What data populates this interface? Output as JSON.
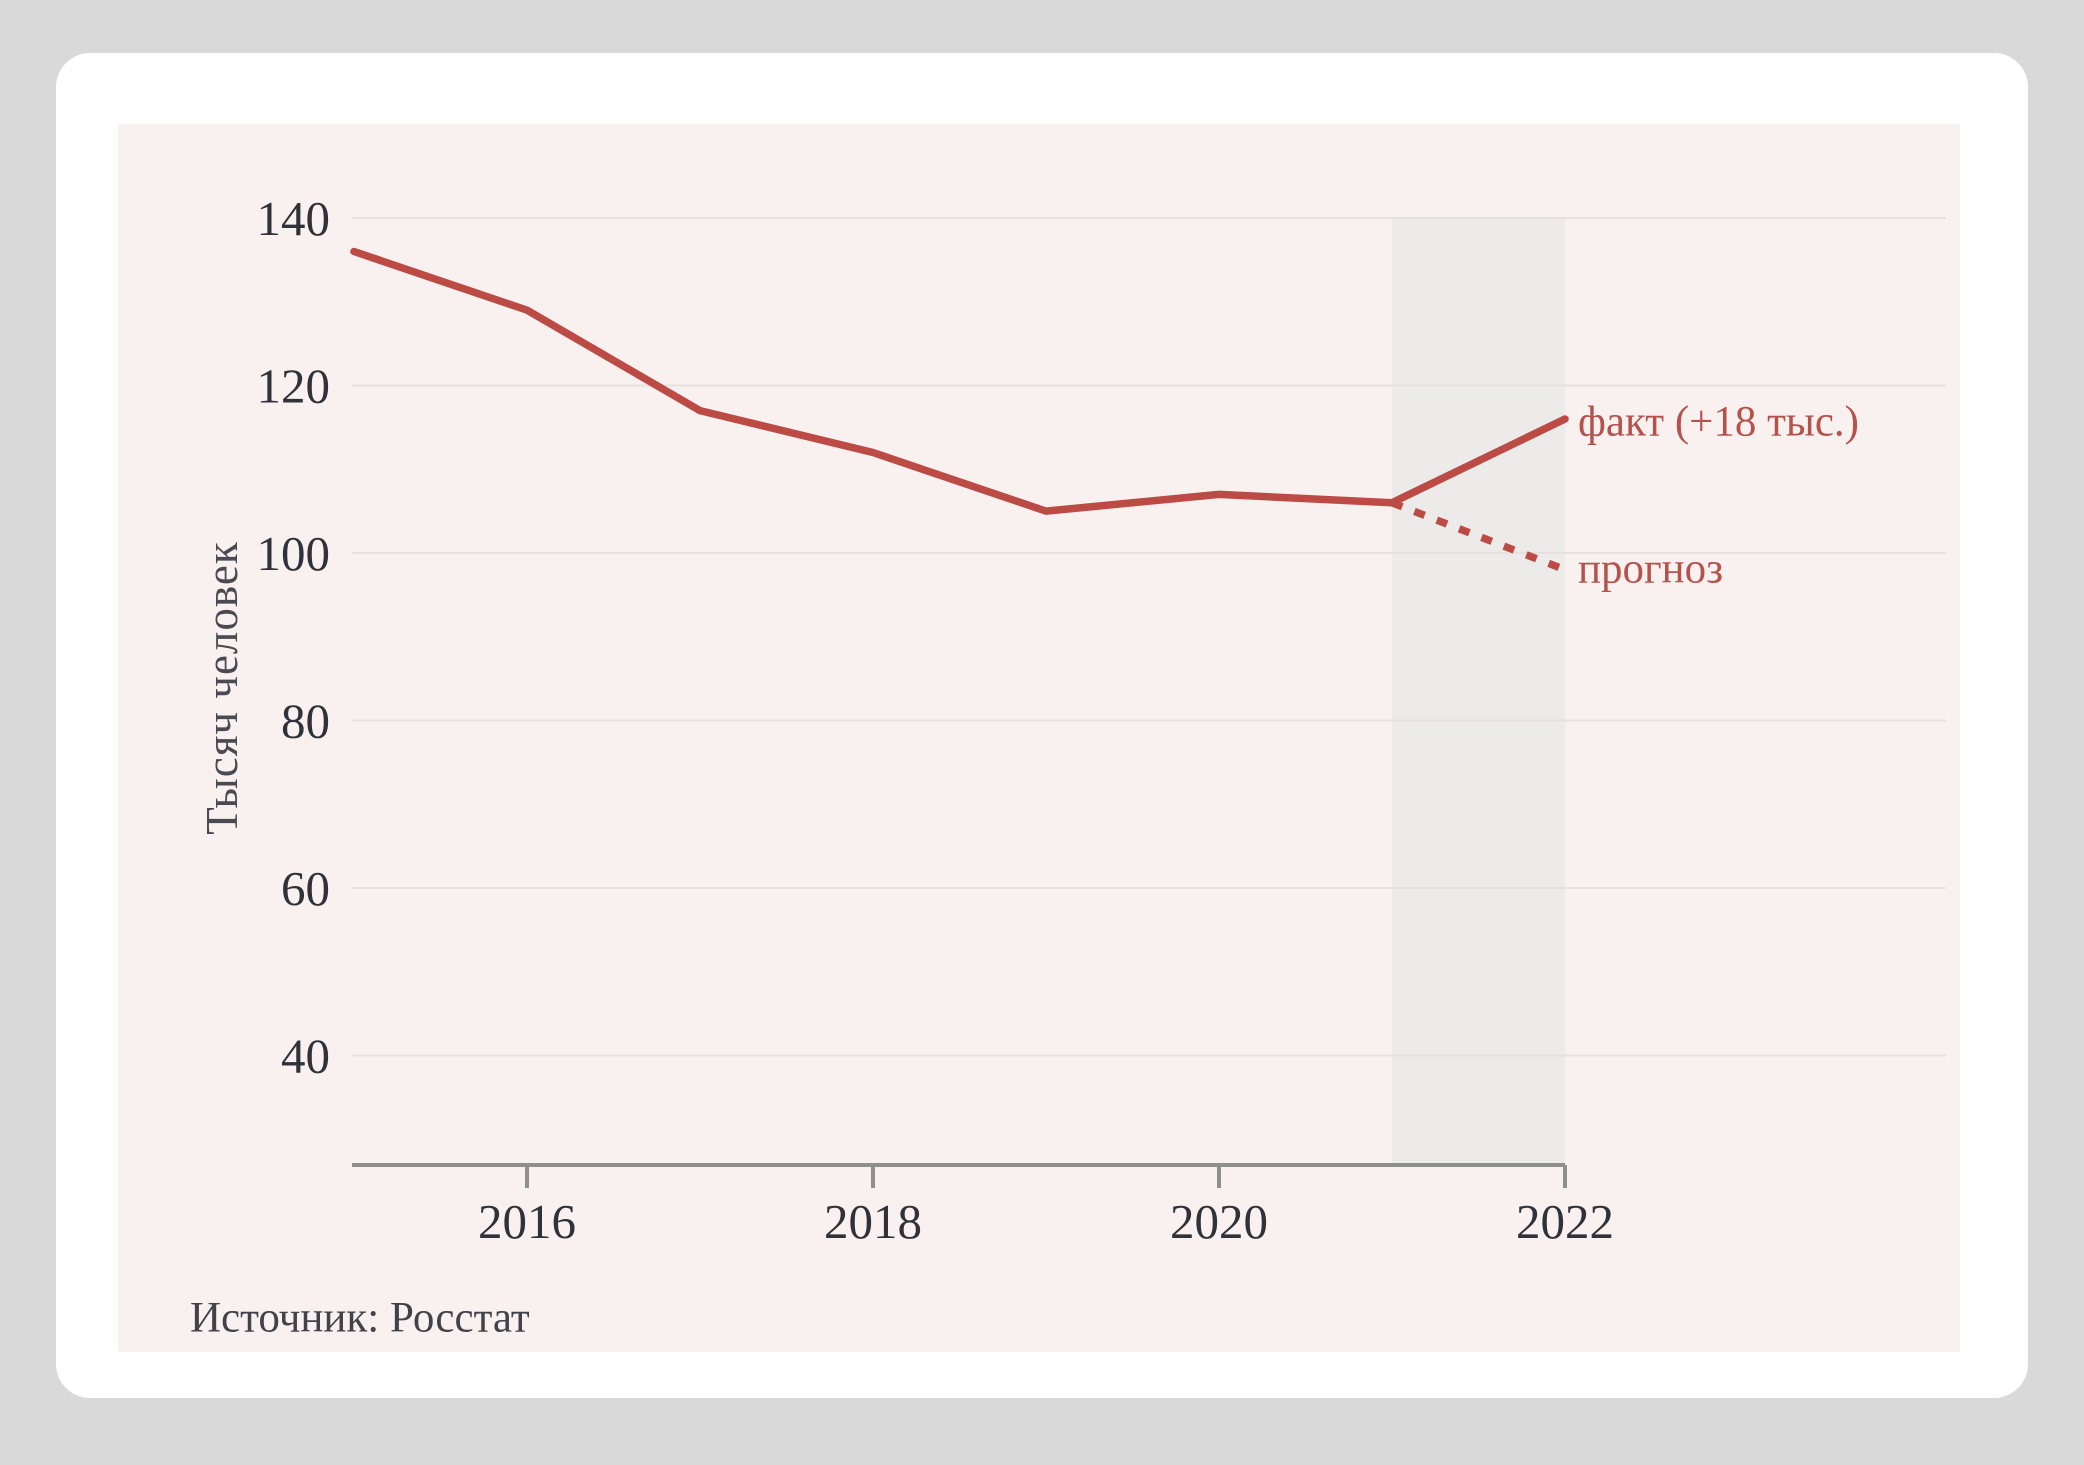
{
  "chart_data": {
    "type": "line",
    "title": "",
    "ylabel": "Тысяч человек",
    "source": "Источник: Росстат",
    "x": [
      2015,
      2016,
      2017,
      2018,
      2019,
      2020,
      2021,
      2022
    ],
    "series": [
      {
        "name": "факт",
        "label": "факт (+18 тыс.)",
        "style": "solid",
        "x": [
          2015,
          2016,
          2017,
          2018,
          2019,
          2020,
          2021,
          2022
        ],
        "values": [
          136,
          129,
          117,
          112,
          105,
          107,
          106,
          116
        ]
      },
      {
        "name": "прогноз",
        "label": "прогноз",
        "style": "dashed",
        "x": [
          2021,
          2022
        ],
        "values": [
          106,
          98
        ]
      }
    ],
    "xticks": [
      2016,
      2018,
      2020,
      2022
    ],
    "yticks": [
      40,
      60,
      80,
      100,
      120,
      140
    ],
    "ylim": [
      27,
      151
    ],
    "grid": "horizontal",
    "legend_position": "inline-right",
    "forecast_band_x": [
      2021,
      2022
    ],
    "colors": {
      "line": "#bc4b46",
      "label_text": "#b5524b",
      "grid": "#e6e1e0",
      "axis": "#8f8f8f",
      "band": "#ecebe9",
      "panel": "#f9f1f0",
      "card": "#ffffff",
      "page": "#d9d9d9",
      "tick_text": "#303239",
      "muted_text": "#42424a"
    }
  }
}
